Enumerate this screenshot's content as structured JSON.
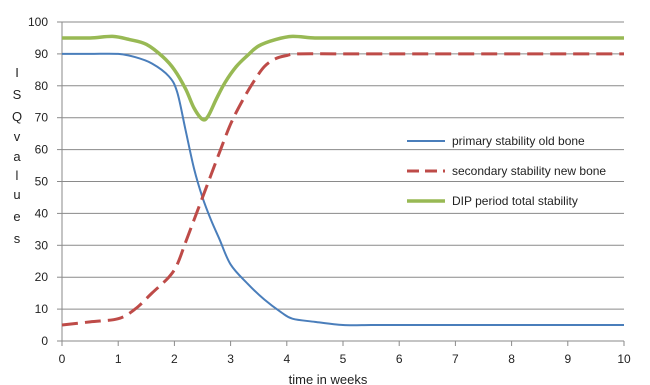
{
  "chart_data": {
    "type": "line",
    "title": "",
    "xlabel": "time in weeks",
    "ylabel": "I S Q v a l u e s",
    "ylabel_letters": [
      "I",
      "S",
      "Q",
      "v",
      "a",
      "l",
      "u",
      "e",
      "s"
    ],
    "xlim": [
      0,
      10
    ],
    "ylim": [
      0,
      100
    ],
    "x_ticks": [
      "0",
      "1",
      "2",
      "3",
      "4",
      "5",
      "6",
      "7",
      "8",
      "9",
      "10"
    ],
    "y_ticks": [
      "0",
      "10",
      "20",
      "30",
      "40",
      "50",
      "60",
      "70",
      "80",
      "90",
      "100"
    ],
    "grid": "horizontal",
    "legend_position": "right",
    "series": [
      {
        "name": "primary stability old bone",
        "color": "#4a7ebb",
        "style": "solid",
        "x": [
          0,
          0.5,
          1,
          1.3,
          1.6,
          1.9,
          2.05,
          2.2,
          2.35,
          2.5,
          2.65,
          2.8,
          3,
          3.3,
          3.6,
          3.9,
          4.1,
          4.5,
          5,
          5.5,
          6,
          7,
          8,
          9,
          10
        ],
        "y": [
          90,
          90,
          90,
          89,
          87,
          83,
          78,
          66,
          54,
          45,
          38,
          32,
          24,
          18,
          13,
          9,
          7,
          6,
          5,
          5,
          5,
          5,
          5,
          5,
          5
        ]
      },
      {
        "name": "secondary stability new bone",
        "color": "#be4b48",
        "style": "dashed",
        "x": [
          0,
          0.5,
          1,
          1.3,
          1.6,
          1.9,
          2.05,
          2.2,
          2.35,
          2.5,
          2.65,
          2.8,
          3,
          3.2,
          3.4,
          3.6,
          3.8,
          4,
          4.2,
          5,
          6,
          7,
          8,
          9,
          10
        ],
        "y": [
          5,
          6,
          7,
          10,
          15,
          20,
          24,
          31,
          38,
          45,
          52,
          59,
          68,
          75,
          81,
          86,
          88.5,
          89.5,
          90,
          90,
          90,
          90,
          90,
          90,
          90
        ]
      },
      {
        "name": "DIP period total stability",
        "color": "#98b954",
        "style": "solid",
        "x": [
          0,
          0.5,
          0.9,
          1.2,
          1.5,
          1.8,
          2.0,
          2.2,
          2.35,
          2.5,
          2.6,
          2.75,
          2.9,
          3.1,
          3.3,
          3.5,
          3.8,
          4.1,
          4.5,
          5,
          6,
          7,
          8,
          9,
          10
        ],
        "y": [
          95,
          95,
          95.5,
          94.5,
          93,
          89,
          85,
          79,
          73,
          69.5,
          70.5,
          76,
          81,
          86,
          89.5,
          92.5,
          94.5,
          95.5,
          95,
          95,
          95,
          95,
          95,
          95,
          95
        ]
      }
    ]
  }
}
